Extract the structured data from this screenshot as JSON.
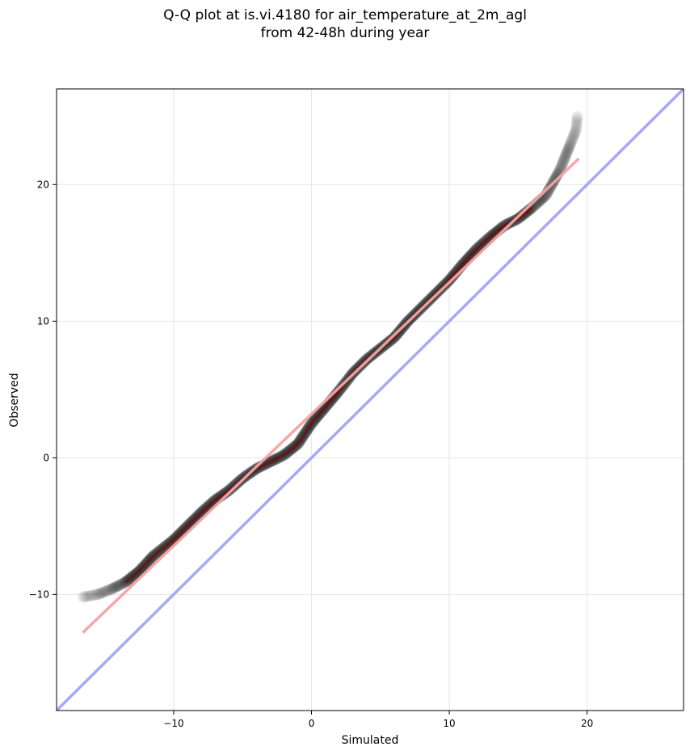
{
  "chart_data": {
    "type": "scatter",
    "title_line1": "Q-Q plot at is.vi.4180 for air_temperature_at_2m_agl",
    "title_line2": "from 42-48h during year",
    "xlabel": "Simulated",
    "ylabel": "Observed",
    "xlim": [
      -18.5,
      27
    ],
    "ylim": [
      -18.5,
      27
    ],
    "xticks": [
      -10,
      0,
      10,
      20
    ],
    "yticks": [
      -10,
      0,
      10,
      20
    ],
    "xtick_labels": [
      "−10",
      "0",
      "10",
      "20"
    ],
    "ytick_labels": [
      "−10",
      "0",
      "10",
      "20"
    ],
    "grid": true,
    "quantile_knots": [
      [
        -16.6,
        -10.2
      ],
      [
        -15.5,
        -10.0
      ],
      [
        -14.5,
        -9.6
      ],
      [
        -13.5,
        -9.1
      ],
      [
        -12.5,
        -8.3
      ],
      [
        -11.5,
        -7.2
      ],
      [
        -10.0,
        -6.0
      ],
      [
        -9.0,
        -5.0
      ],
      [
        -8.0,
        -4.0
      ],
      [
        -7.0,
        -3.1
      ],
      [
        -6.0,
        -2.4
      ],
      [
        -5.0,
        -1.5
      ],
      [
        -4.0,
        -0.8
      ],
      [
        -3.0,
        -0.3
      ],
      [
        -2.0,
        0.2
      ],
      [
        -1.0,
        1.0
      ],
      [
        0.0,
        2.5
      ],
      [
        1.0,
        3.7
      ],
      [
        2.0,
        4.9
      ],
      [
        3.0,
        6.2
      ],
      [
        4.0,
        7.2
      ],
      [
        5.0,
        8.0
      ],
      [
        6.0,
        8.8
      ],
      [
        7.0,
        10.0
      ],
      [
        8.0,
        11.0
      ],
      [
        9.0,
        12.0
      ],
      [
        10.0,
        13.0
      ],
      [
        11.0,
        14.2
      ],
      [
        12.0,
        15.3
      ],
      [
        13.0,
        16.2
      ],
      [
        14.0,
        17.0
      ],
      [
        15.0,
        17.5
      ],
      [
        16.0,
        18.3
      ],
      [
        17.0,
        19.2
      ],
      [
        18.0,
        21.0
      ],
      [
        18.8,
        23.0
      ],
      [
        19.2,
        24.0
      ],
      [
        19.3,
        25.0
      ]
    ],
    "fit_line": {
      "x": [
        -16.6,
        19.4
      ],
      "y": [
        -12.8,
        21.9
      ],
      "color": "#f4a3a3"
    },
    "identity_line": {
      "x": [
        -18.5,
        27
      ],
      "y": [
        -18.5,
        27
      ],
      "color": "#a8a8f4"
    },
    "point_color": "#000000",
    "center_line_color": "#8b0000"
  }
}
